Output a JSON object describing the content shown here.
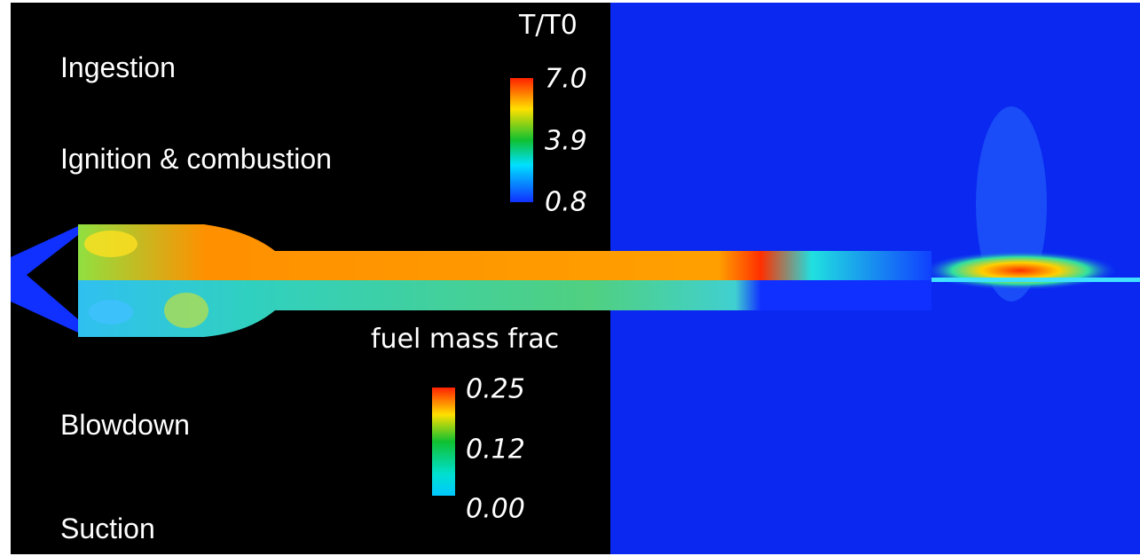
{
  "phases": [
    "Ingestion",
    "Ignition & combustion",
    "Blowdown",
    "Suction"
  ],
  "colorbars": [
    {
      "title": "T/T0",
      "ticks": [
        "7.0",
        "3.9",
        "0.8"
      ]
    },
    {
      "title": "fuel mass frac",
      "ticks": [
        "0.25",
        "0.12",
        "0.00"
      ]
    }
  ]
}
